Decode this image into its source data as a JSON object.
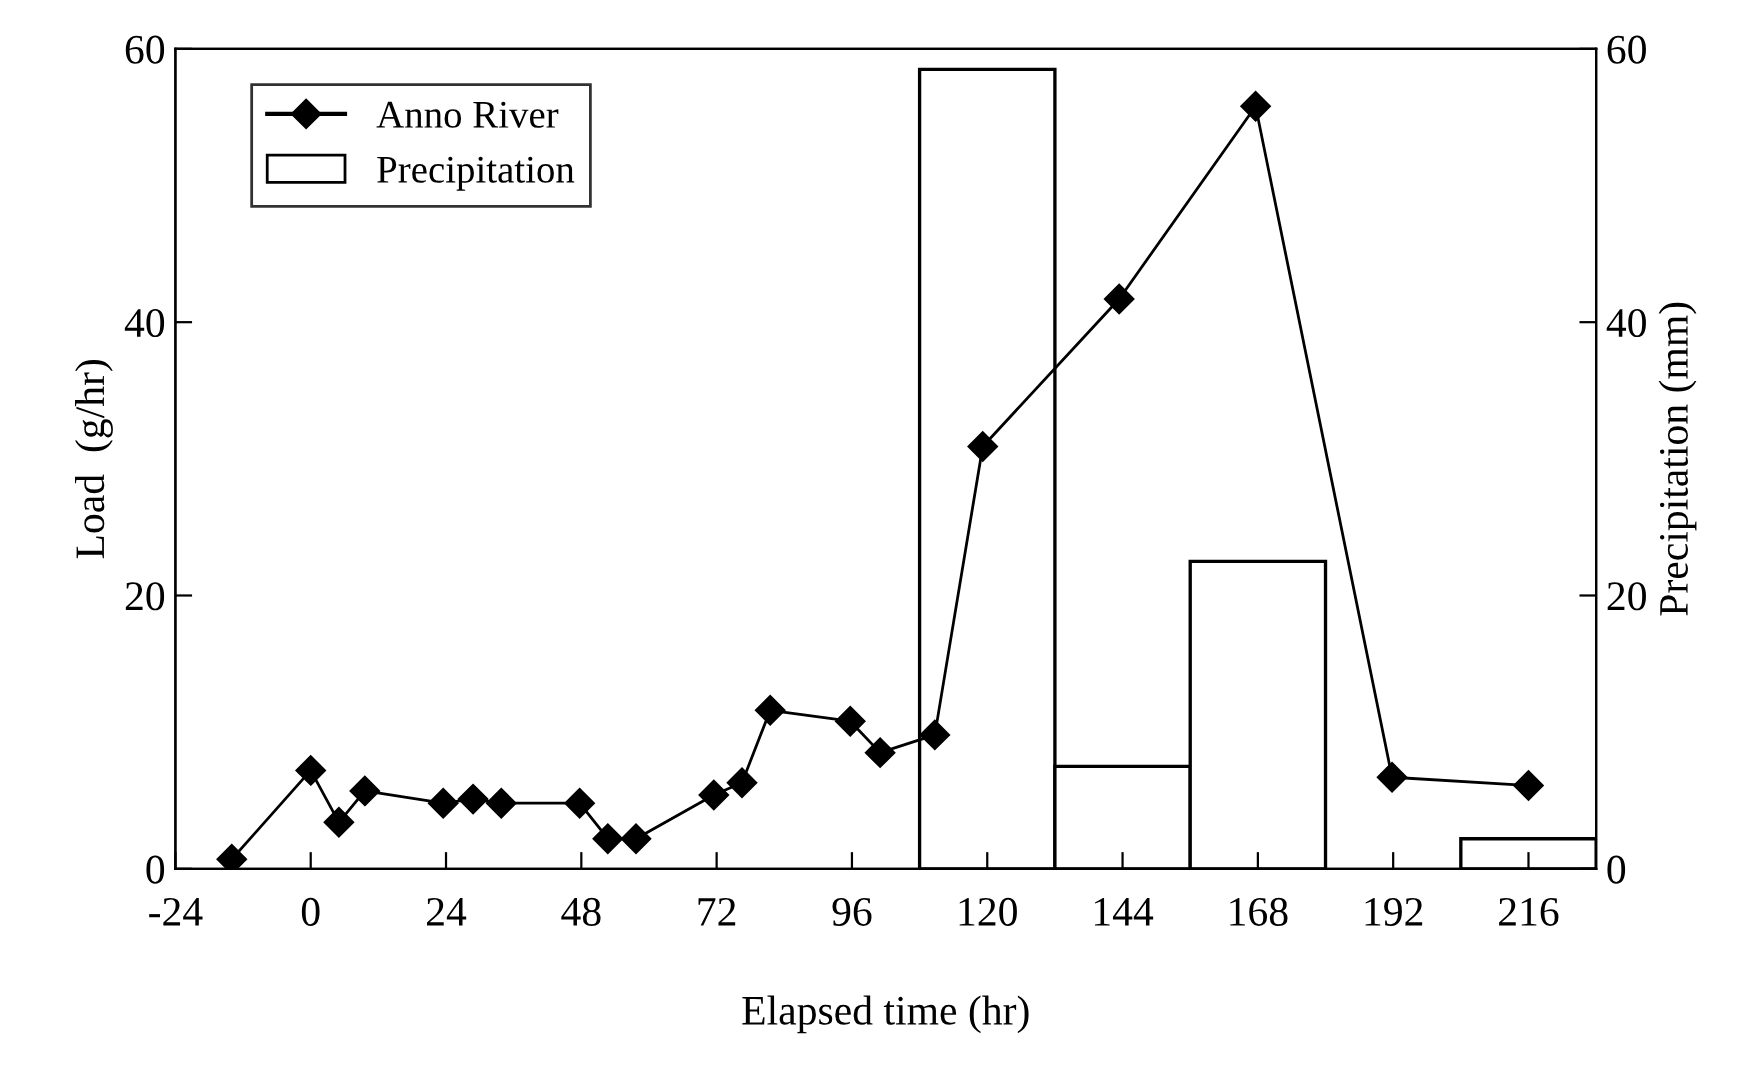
{
  "chart_data": {
    "type": "line",
    "xlabel": "Elapsed time (hr)",
    "ylabel": "Load  (g/hr)",
    "y2label": "Precipitation (mm)",
    "series": [
      {
        "name": "Anno River",
        "color": "#000000",
        "marker": "diamond",
        "x": [
          -14,
          0,
          5,
          9.6,
          23.5,
          28.8,
          33.8,
          47.7,
          52.7,
          57.7,
          71.5,
          76.5,
          81.5,
          95.7,
          101,
          110.7,
          119.2,
          143.4,
          167.6,
          191.8,
          216
        ],
        "values": [
          0.7,
          7.2,
          3.4,
          5.7,
          4.8,
          5.1,
          4.8,
          4.8,
          2.2,
          2.2,
          5.4,
          6.3,
          11.6,
          10.8,
          8.5,
          9.8,
          30.9,
          41.7,
          55.8,
          6.7,
          6.1
        ]
      },
      {
        "name": "Precipitation",
        "type": "bar",
        "axis": "y2",
        "color": "#ffffff",
        "x": [
          120,
          144,
          168,
          216
        ],
        "values": [
          58.5,
          7.5,
          22.5,
          2.2
        ]
      }
    ],
    "xlim": [
      -24,
      228
    ],
    "xticks": [
      -24,
      0,
      24,
      48,
      72,
      96,
      120,
      144,
      168,
      192,
      216
    ],
    "ylim": [
      0,
      60
    ],
    "yticks": [
      0,
      20,
      40,
      60
    ],
    "y2lim": [
      0,
      60
    ],
    "y2ticks": [
      0,
      20,
      40,
      60
    ],
    "legend": "top left",
    "grid": false
  }
}
